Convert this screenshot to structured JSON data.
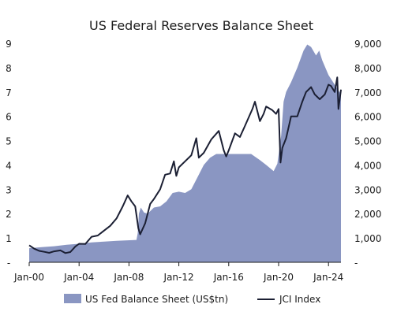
{
  "chart_data": {
    "type": "area+line",
    "title": "US Federal Reserves Balance Sheet",
    "x_ticks": [
      "Jan-00",
      "Jan-04",
      "Jan-08",
      "Jan-12",
      "Jan-16",
      "Jan-20",
      "Jan-24"
    ],
    "x_range": [
      2000.0,
      2025.0
    ],
    "y_left": {
      "range": [
        0,
        9
      ],
      "ticks": [
        "-",
        "1",
        "2",
        "3",
        "4",
        "5",
        "6",
        "7",
        "8",
        "9"
      ]
    },
    "y_right": {
      "range": [
        0,
        9000
      ],
      "ticks": [
        "-",
        "1,000",
        "2,000",
        "3,000",
        "4,000",
        "5,000",
        "6,000",
        "7,000",
        "8,000",
        "9,000"
      ]
    },
    "series": [
      {
        "name": "US Fed Balance Sheet (US$tn)",
        "kind": "area",
        "axis": "left",
        "color": "#8a96c2",
        "points": [
          [
            2000.0,
            0.58
          ],
          [
            2001.0,
            0.62
          ],
          [
            2002.0,
            0.66
          ],
          [
            2003.0,
            0.72
          ],
          [
            2004.0,
            0.76
          ],
          [
            2005.0,
            0.82
          ],
          [
            2006.0,
            0.85
          ],
          [
            2007.0,
            0.88
          ],
          [
            2008.6,
            0.92
          ],
          [
            2008.7,
            1.2
          ],
          [
            2008.8,
            2.0
          ],
          [
            2008.95,
            2.25
          ],
          [
            2009.2,
            2.05
          ],
          [
            2009.5,
            2.0
          ],
          [
            2010.0,
            2.25
          ],
          [
            2010.5,
            2.3
          ],
          [
            2011.0,
            2.5
          ],
          [
            2011.5,
            2.85
          ],
          [
            2012.0,
            2.9
          ],
          [
            2012.5,
            2.85
          ],
          [
            2013.0,
            3.0
          ],
          [
            2013.5,
            3.5
          ],
          [
            2014.0,
            4.0
          ],
          [
            2014.5,
            4.3
          ],
          [
            2015.0,
            4.45
          ],
          [
            2016.0,
            4.45
          ],
          [
            2017.0,
            4.45
          ],
          [
            2017.8,
            4.45
          ],
          [
            2018.5,
            4.2
          ],
          [
            2019.0,
            4.0
          ],
          [
            2019.6,
            3.75
          ],
          [
            2019.9,
            4.05
          ],
          [
            2020.2,
            5.2
          ],
          [
            2020.4,
            6.6
          ],
          [
            2020.6,
            7.0
          ],
          [
            2021.0,
            7.4
          ],
          [
            2021.5,
            8.0
          ],
          [
            2022.0,
            8.7
          ],
          [
            2022.3,
            8.95
          ],
          [
            2022.6,
            8.85
          ],
          [
            2023.0,
            8.5
          ],
          [
            2023.25,
            8.7
          ],
          [
            2023.5,
            8.3
          ],
          [
            2024.0,
            7.7
          ],
          [
            2024.5,
            7.3
          ],
          [
            2025.0,
            6.9
          ]
        ]
      },
      {
        "name": "JCI Index",
        "kind": "line",
        "axis": "right",
        "color": "#1b1f33",
        "points": [
          [
            2000.0,
            700
          ],
          [
            2000.4,
            560
          ],
          [
            2000.8,
            470
          ],
          [
            2001.2,
            430
          ],
          [
            2001.6,
            390
          ],
          [
            2002.0,
            450
          ],
          [
            2002.5,
            490
          ],
          [
            2002.9,
            380
          ],
          [
            2003.3,
            420
          ],
          [
            2003.7,
            650
          ],
          [
            2004.0,
            760
          ],
          [
            2004.5,
            750
          ],
          [
            2005.0,
            1050
          ],
          [
            2005.5,
            1100
          ],
          [
            2006.0,
            1300
          ],
          [
            2006.5,
            1500
          ],
          [
            2007.0,
            1800
          ],
          [
            2007.5,
            2300
          ],
          [
            2007.9,
            2750
          ],
          [
            2008.2,
            2500
          ],
          [
            2008.5,
            2300
          ],
          [
            2008.75,
            1400
          ],
          [
            2008.9,
            1150
          ],
          [
            2009.3,
            1600
          ],
          [
            2009.7,
            2400
          ],
          [
            2010.0,
            2600
          ],
          [
            2010.5,
            3000
          ],
          [
            2010.9,
            3600
          ],
          [
            2011.3,
            3650
          ],
          [
            2011.6,
            4150
          ],
          [
            2011.8,
            3550
          ],
          [
            2012.0,
            3900
          ],
          [
            2012.5,
            4150
          ],
          [
            2013.0,
            4400
          ],
          [
            2013.4,
            5100
          ],
          [
            2013.6,
            4300
          ],
          [
            2014.0,
            4500
          ],
          [
            2014.6,
            5050
          ],
          [
            2015.2,
            5400
          ],
          [
            2015.6,
            4600
          ],
          [
            2015.8,
            4350
          ],
          [
            2016.0,
            4600
          ],
          [
            2016.5,
            5300
          ],
          [
            2016.9,
            5150
          ],
          [
            2017.3,
            5600
          ],
          [
            2017.9,
            6300
          ],
          [
            2018.1,
            6600
          ],
          [
            2018.5,
            5800
          ],
          [
            2018.8,
            6100
          ],
          [
            2019.0,
            6400
          ],
          [
            2019.5,
            6250
          ],
          [
            2019.8,
            6100
          ],
          [
            2020.0,
            6300
          ],
          [
            2020.15,
            4100
          ],
          [
            2020.3,
            4700
          ],
          [
            2020.6,
            5100
          ],
          [
            2021.0,
            6000
          ],
          [
            2021.5,
            6000
          ],
          [
            2021.9,
            6600
          ],
          [
            2022.2,
            7000
          ],
          [
            2022.6,
            7200
          ],
          [
            2022.9,
            6900
          ],
          [
            2023.3,
            6700
          ],
          [
            2023.7,
            6900
          ],
          [
            2024.0,
            7300
          ],
          [
            2024.2,
            7250
          ],
          [
            2024.5,
            7000
          ],
          [
            2024.7,
            7600
          ],
          [
            2024.8,
            6300
          ],
          [
            2025.0,
            7100
          ]
        ]
      }
    ],
    "legend": {
      "position": "bottom"
    }
  }
}
